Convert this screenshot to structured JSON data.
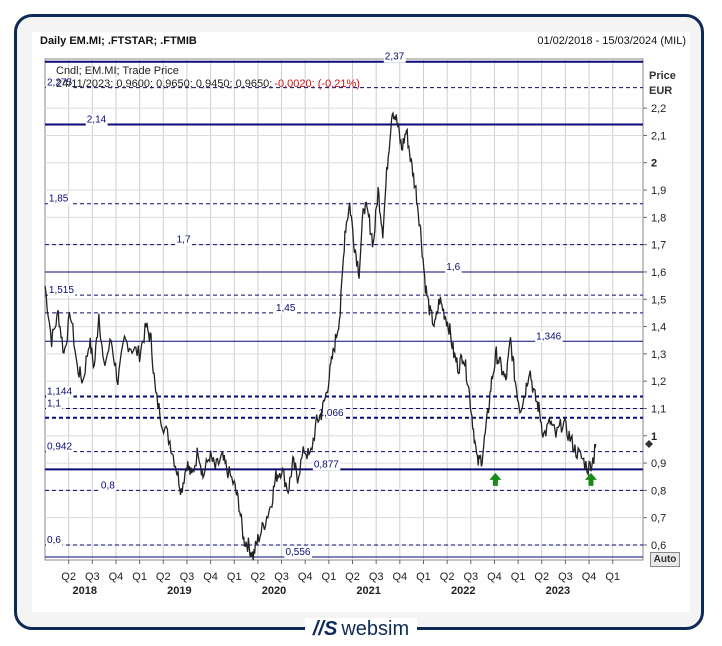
{
  "header": {
    "title": "Daily EM.MI; .FTSTAR; .FTMIB",
    "date_range": "01/02/2018 - 15/03/2024 (MIL)"
  },
  "legend": {
    "line1": "Cndl; EM.MI; Trade Price",
    "line2_prefix": "24/11/2023; 0,9600; 0,9650; 0,9450; 0,9650; ",
    "line2_change": "-0,0020; (-0,21%)"
  },
  "auto_button": "Auto",
  "brand": "websim",
  "colors": {
    "price": "#222222",
    "level": "#0a0a78",
    "arrow": "#1a8a1a",
    "frame": "#0d2a57",
    "change": "#d01010"
  },
  "chart_data": {
    "type": "line",
    "series_name": "EM.MI",
    "y_axis_title": "Price",
    "y_axis_unit": "EUR",
    "ylim": [
      0.55,
      2.4
    ],
    "yticks": [
      "2,2",
      "2,1",
      "2",
      "1,9",
      "1,8",
      "1,7",
      "1,6",
      "1,5",
      "1,4",
      "1,3",
      "1,2",
      "1,1",
      "1",
      "0,9",
      "0,8",
      "0,7",
      "0,6"
    ],
    "ytick_values": [
      2.2,
      2.1,
      2.0,
      1.9,
      1.8,
      1.7,
      1.6,
      1.5,
      1.4,
      1.3,
      1.2,
      1.1,
      1.0,
      0.9,
      0.8,
      0.7,
      0.6
    ],
    "quarters": [
      "Q2",
      "Q3",
      "Q4",
      "Q1",
      "Q2",
      "Q3",
      "Q4",
      "Q1",
      "Q2",
      "Q3",
      "Q4",
      "Q1",
      "Q2",
      "Q3",
      "Q4",
      "Q1",
      "Q2",
      "Q3",
      "Q4",
      "Q1",
      "Q2",
      "Q3",
      "Q4",
      "Q1"
    ],
    "quarter_positions": [
      2018.33,
      2018.58,
      2018.83,
      2019.08,
      2019.33,
      2019.58,
      2019.83,
      2020.08,
      2020.33,
      2020.58,
      2020.83,
      2021.08,
      2021.33,
      2021.58,
      2021.83,
      2022.08,
      2022.33,
      2022.58,
      2022.83,
      2023.08,
      2023.33,
      2023.58,
      2023.83,
      2024.08
    ],
    "years": [
      "2018",
      "2019",
      "2020",
      "2021",
      "2022",
      "2023"
    ],
    "year_positions": [
      2018.5,
      2019.5,
      2020.5,
      2021.5,
      2022.5,
      2023.5
    ],
    "xlim": [
      2018.08,
      2024.4
    ],
    "levels": [
      {
        "value": 2.37,
        "label": "2,37",
        "style": "solid-thick",
        "label_x": 2021.65
      },
      {
        "value": 2.275,
        "label": "2,275",
        "style": "dashed",
        "label_x": 2018.08
      },
      {
        "value": 2.14,
        "label": "2,14",
        "style": "solid-thick",
        "label_x": 2018.5
      },
      {
        "value": 1.85,
        "label": "1,85",
        "style": "dashed",
        "label_x": 2018.1
      },
      {
        "value": 1.7,
        "label": "1,7",
        "style": "dashed",
        "label_x": 2019.45
      },
      {
        "value": 1.6,
        "label": "1,6",
        "style": "solid",
        "label_x": 2022.3
      },
      {
        "value": 1.515,
        "label": "1,515",
        "style": "dashed",
        "label_x": 2018.1
      },
      {
        "value": 1.45,
        "label": "1,45",
        "style": "dashed",
        "label_x": 2020.5
      },
      {
        "value": 1.346,
        "label": "1,346",
        "style": "solid",
        "label_x": 2023.25
      },
      {
        "value": 1.144,
        "label": "1,144",
        "style": "dashed-thick",
        "label_x": 2018.08
      },
      {
        "value": 1.1,
        "label": "1,1",
        "style": "dashed",
        "label_x": 2018.08
      },
      {
        "value": 1.066,
        "label": "1,066",
        "style": "dashed-thick",
        "label_x": 2020.95
      },
      {
        "value": 0.942,
        "label": "0,942",
        "style": "dashed",
        "label_x": 2018.08
      },
      {
        "value": 0.877,
        "label": "0,877",
        "style": "solid-thick",
        "label_x": 2020.9
      },
      {
        "value": 0.8,
        "label": "0,8",
        "style": "dashed",
        "label_x": 2018.65
      },
      {
        "value": 0.6,
        "label": "0,6",
        "style": "dashed",
        "label_x": 2018.08
      },
      {
        "value": 0.556,
        "label": "0,556",
        "style": "solid",
        "label_x": 2020.6
      }
    ],
    "price": [
      [
        2018.08,
        1.55
      ],
      [
        2018.15,
        1.35
      ],
      [
        2018.22,
        1.45
      ],
      [
        2018.28,
        1.3
      ],
      [
        2018.35,
        1.45
      ],
      [
        2018.42,
        1.25
      ],
      [
        2018.48,
        1.2
      ],
      [
        2018.55,
        1.35
      ],
      [
        2018.6,
        1.25
      ],
      [
        2018.65,
        1.45
      ],
      [
        2018.7,
        1.25
      ],
      [
        2018.78,
        1.35
      ],
      [
        2018.85,
        1.2
      ],
      [
        2018.92,
        1.35
      ],
      [
        2019.0,
        1.32
      ],
      [
        2019.08,
        1.3
      ],
      [
        2019.15,
        1.4
      ],
      [
        2019.2,
        1.35
      ],
      [
        2019.25,
        1.15
      ],
      [
        2019.32,
        1.05
      ],
      [
        2019.4,
        0.98
      ],
      [
        2019.47,
        0.88
      ],
      [
        2019.52,
        0.8
      ],
      [
        2019.58,
        0.9
      ],
      [
        2019.63,
        0.85
      ],
      [
        2019.7,
        0.95
      ],
      [
        2019.75,
        0.85
      ],
      [
        2019.82,
        0.93
      ],
      [
        2019.88,
        0.88
      ],
      [
        2019.95,
        0.92
      ],
      [
        2020.0,
        0.88
      ],
      [
        2020.08,
        0.82
      ],
      [
        2020.13,
        0.75
      ],
      [
        2020.18,
        0.62
      ],
      [
        2020.23,
        0.6
      ],
      [
        2020.28,
        0.56
      ],
      [
        2020.33,
        0.62
      ],
      [
        2020.4,
        0.68
      ],
      [
        2020.47,
        0.75
      ],
      [
        2020.52,
        0.85
      ],
      [
        2020.58,
        0.88
      ],
      [
        2020.65,
        0.8
      ],
      [
        2020.7,
        0.9
      ],
      [
        2020.75,
        0.85
      ],
      [
        2020.82,
        0.95
      ],
      [
        2020.88,
        0.92
      ],
      [
        2020.95,
        1.05
      ],
      [
        2021.0,
        1.08
      ],
      [
        2021.05,
        1.15
      ],
      [
        2021.1,
        1.25
      ],
      [
        2021.15,
        1.35
      ],
      [
        2021.2,
        1.45
      ],
      [
        2021.25,
        1.75
      ],
      [
        2021.3,
        1.85
      ],
      [
        2021.35,
        1.7
      ],
      [
        2021.4,
        1.6
      ],
      [
        2021.45,
        1.85
      ],
      [
        2021.5,
        1.8
      ],
      [
        2021.55,
        1.7
      ],
      [
        2021.6,
        1.9
      ],
      [
        2021.65,
        1.75
      ],
      [
        2021.7,
        2.0
      ],
      [
        2021.75,
        2.2
      ],
      [
        2021.8,
        2.15
      ],
      [
        2021.85,
        2.05
      ],
      [
        2021.9,
        2.12
      ],
      [
        2021.95,
        2.0
      ],
      [
        2022.0,
        1.9
      ],
      [
        2022.05,
        1.75
      ],
      [
        2022.1,
        1.55
      ],
      [
        2022.15,
        1.45
      ],
      [
        2022.2,
        1.4
      ],
      [
        2022.25,
        1.5
      ],
      [
        2022.3,
        1.45
      ],
      [
        2022.35,
        1.4
      ],
      [
        2022.4,
        1.3
      ],
      [
        2022.45,
        1.25
      ],
      [
        2022.5,
        1.3
      ],
      [
        2022.55,
        1.2
      ],
      [
        2022.6,
        1.05
      ],
      [
        2022.65,
        0.9
      ],
      [
        2022.7,
        0.92
      ],
      [
        2022.75,
        1.05
      ],
      [
        2022.8,
        1.2
      ],
      [
        2022.85,
        1.3
      ],
      [
        2022.9,
        1.25
      ],
      [
        2022.95,
        1.2
      ],
      [
        2023.0,
        1.35
      ],
      [
        2023.05,
        1.2
      ],
      [
        2023.1,
        1.1
      ],
      [
        2023.15,
        1.15
      ],
      [
        2023.2,
        1.25
      ],
      [
        2023.25,
        1.15
      ],
      [
        2023.3,
        1.1
      ],
      [
        2023.35,
        1.0
      ],
      [
        2023.42,
        1.05
      ],
      [
        2023.48,
        1.0
      ],
      [
        2023.55,
        1.05
      ],
      [
        2023.62,
        1.0
      ],
      [
        2023.68,
        0.95
      ],
      [
        2023.75,
        0.92
      ],
      [
        2023.82,
        0.88
      ],
      [
        2023.88,
        0.92
      ],
      [
        2023.9,
        0.97
      ]
    ],
    "arrows": [
      2022.84,
      2023.85
    ],
    "arrow_value": 0.835
  }
}
